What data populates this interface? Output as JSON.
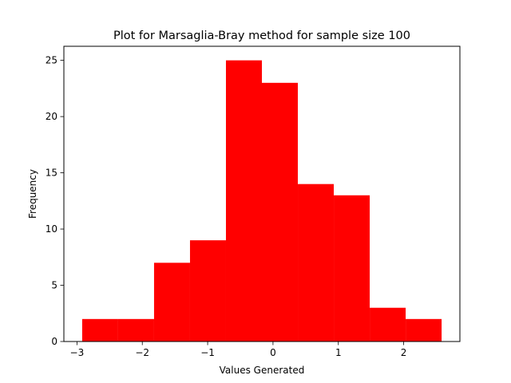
{
  "chart_data": {
    "type": "bar",
    "title": "Plot for Marsaglia-Bray method for sample size 100",
    "xlabel": "Values Generated",
    "ylabel": "Frequency",
    "bar_color": "#ff0000",
    "bin_edges": [
      -2.92,
      -2.37,
      -1.82,
      -1.27,
      -0.72,
      -0.17,
      0.38,
      0.93,
      1.48,
      2.03,
      2.58
    ],
    "counts": [
      2,
      2,
      7,
      9,
      25,
      23,
      14,
      13,
      3,
      2
    ],
    "xlim": [
      -3.2,
      2.86
    ],
    "ylim": [
      0,
      26.25
    ],
    "xticks": [
      -3,
      -2,
      -1,
      0,
      1,
      2
    ],
    "xtick_labels": [
      "−3",
      "−2",
      "−1",
      "0",
      "1",
      "2"
    ],
    "yticks": [
      0,
      5,
      10,
      15,
      20,
      25
    ],
    "ytick_labels": [
      "0",
      "5",
      "10",
      "15",
      "20",
      "25"
    ],
    "grid": false,
    "legend": "none"
  }
}
